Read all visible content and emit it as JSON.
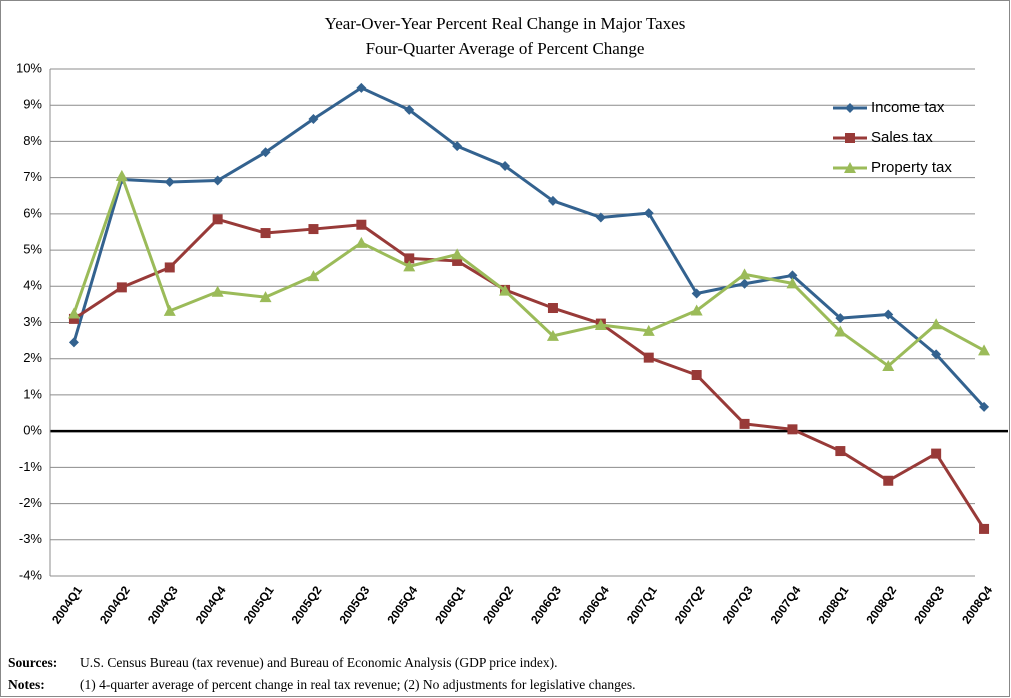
{
  "chart_data": {
    "type": "line",
    "title": "Year-Over-Year Percent Real Change in Major Taxes",
    "subtitle": "Four-Quarter Average of Percent Change",
    "categories": [
      "2004Q1",
      "2004Q2",
      "2004Q3",
      "2004Q4",
      "2005Q1",
      "2005Q2",
      "2005Q3",
      "2005Q4",
      "2006Q1",
      "2006Q2",
      "2006Q3",
      "2006Q4",
      "2007Q1",
      "2007Q2",
      "2007Q3",
      "2007Q4",
      "2008Q1",
      "2008Q2",
      "2008Q3",
      "2008Q4"
    ],
    "series": [
      {
        "name": "Income tax",
        "color": "#33628f",
        "marker": "diamond",
        "values": [
          2.45,
          6.95,
          6.88,
          6.92,
          7.7,
          8.62,
          9.48,
          8.87,
          7.87,
          7.32,
          6.36,
          5.9,
          6.02,
          3.8,
          4.07,
          4.3,
          3.12,
          3.22,
          2.12,
          0.67
        ]
      },
      {
        "name": "Sales tax",
        "color": "#983a38",
        "marker": "square",
        "values": [
          3.1,
          3.97,
          4.52,
          5.85,
          5.47,
          5.58,
          5.7,
          4.77,
          4.7,
          3.9,
          3.4,
          2.97,
          2.03,
          1.55,
          0.2,
          0.05,
          -0.55,
          -1.37,
          -0.62,
          -2.7
        ]
      },
      {
        "name": "Property tax",
        "color": "#9bbb59",
        "marker": "triangle",
        "values": [
          3.25,
          7.05,
          3.32,
          3.85,
          3.7,
          4.28,
          5.2,
          4.55,
          4.88,
          3.88,
          2.63,
          2.93,
          2.77,
          3.33,
          4.33,
          4.08,
          2.75,
          1.8,
          2.95,
          2.23
        ]
      }
    ],
    "ylim": [
      -4,
      10
    ],
    "yticks": [
      {
        "value": -4,
        "label": "-4%"
      },
      {
        "value": -3,
        "label": "-3%"
      },
      {
        "value": -2,
        "label": "-2%"
      },
      {
        "value": -1,
        "label": "-1%"
      },
      {
        "value": 0,
        "label": "0%"
      },
      {
        "value": 1,
        "label": "1%"
      },
      {
        "value": 2,
        "label": "2%"
      },
      {
        "value": 3,
        "label": "3%"
      },
      {
        "value": 4,
        "label": "4%"
      },
      {
        "value": 5,
        "label": "5%"
      },
      {
        "value": 6,
        "label": "6%"
      },
      {
        "value": 7,
        "label": "7%"
      },
      {
        "value": 8,
        "label": "8%"
      },
      {
        "value": 9,
        "label": "9%"
      },
      {
        "value": 10,
        "label": "10%"
      }
    ],
    "grid": true,
    "legend": "top-right",
    "sources_label": "Sources:",
    "sources": "U.S. Census Bureau (tax revenue) and Bureau of Economic Analysis (GDP price index).",
    "notes_label": "Notes:",
    "notes": "(1) 4-quarter average of percent change in real tax revenue; (2) No adjustments for legislative changes."
  }
}
